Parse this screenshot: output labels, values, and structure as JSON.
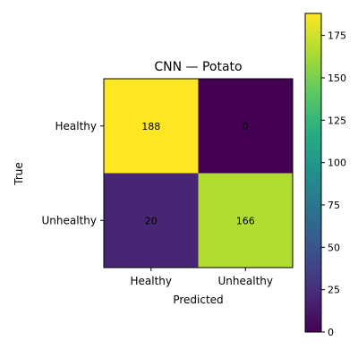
{
  "chart_data": {
    "type": "heatmap",
    "title": "CNN — Potato",
    "xlabel": "Predicted",
    "ylabel": "True",
    "x_categories": [
      "Healthy",
      "Unhealthy"
    ],
    "y_categories": [
      "Healthy",
      "Unhealthy"
    ],
    "values": [
      [
        188,
        0
      ],
      [
        20,
        166
      ]
    ],
    "colormap": "viridis",
    "colorbar": {
      "min": 0,
      "max": 188,
      "ticks": [
        0,
        25,
        50,
        75,
        100,
        125,
        150,
        175
      ]
    }
  }
}
